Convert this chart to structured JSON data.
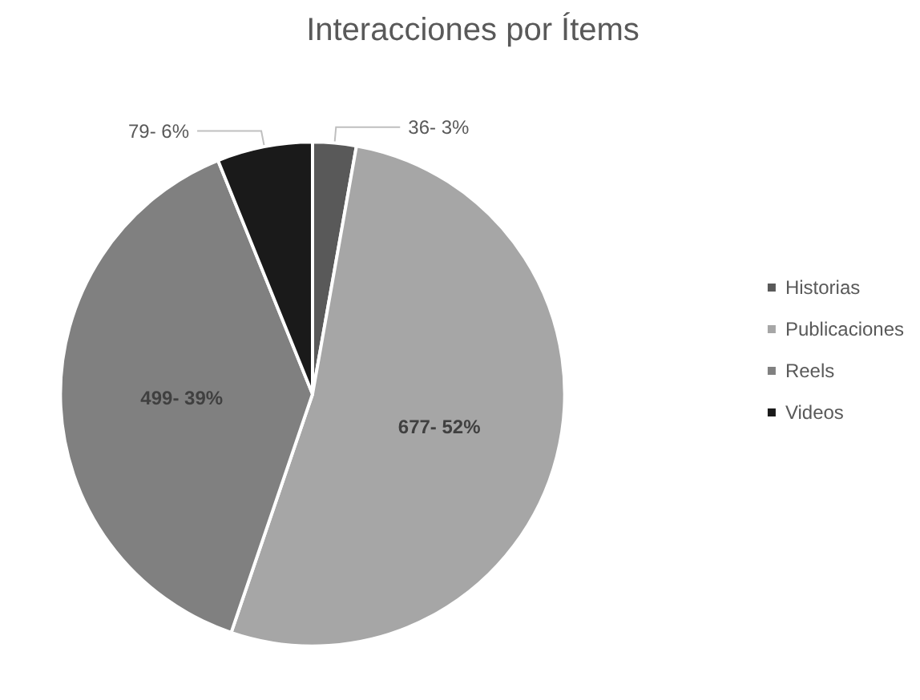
{
  "chart_data": {
    "type": "pie",
    "title": "Interacciones por Ítems",
    "categories": [
      "Historias",
      "Publicaciones",
      "Reels",
      "Videos"
    ],
    "values": [
      36,
      677,
      499,
      79
    ],
    "colors": [
      "#595959",
      "#a6a6a6",
      "#808080",
      "#1a1a1a"
    ],
    "value_labels": [
      "36- 3%",
      "677- 52%",
      "499- 39%",
      "79- 6%"
    ],
    "legend": "right"
  }
}
